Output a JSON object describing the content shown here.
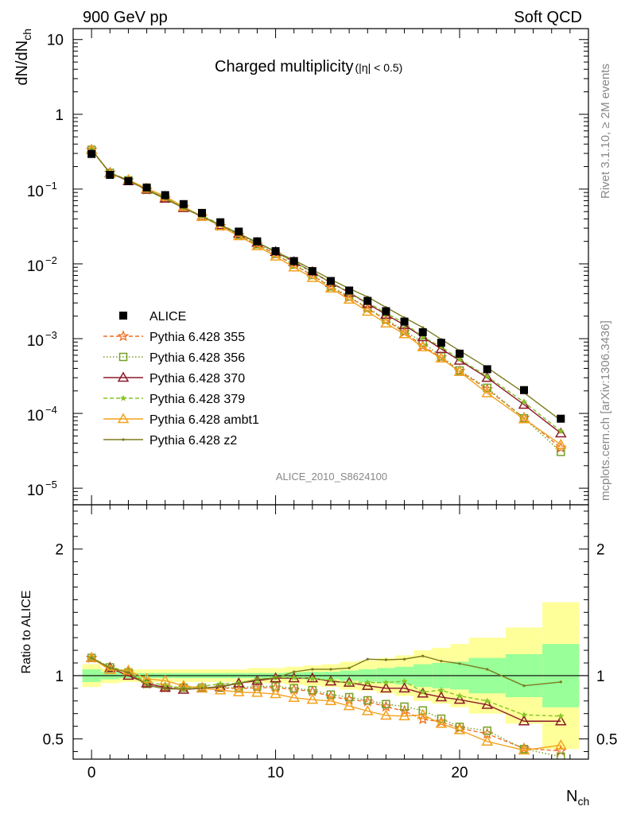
{
  "header": {
    "left": "900 GeV pp",
    "right": "Soft QCD"
  },
  "side_labels": {
    "rivet": "Rivet 3.1.10, ≥ 2M events",
    "mcplots": "mcplots.cern.ch [arXiv:1306.3436]"
  },
  "analysis_id": "ALICE_2010_S8624100",
  "colors": {
    "ALICE": "#000000",
    "p355": "#ee6f22",
    "p356": "#77a026",
    "p370": "#8b1a2a",
    "p379": "#84c42a",
    "pambt1": "#f2a21c",
    "pz2": "#7b7a1e",
    "band_outer": "#ffff99",
    "band_inner": "#99ff99"
  },
  "chart_data": [
    {
      "type": "line",
      "panel": "main",
      "title": "Charged multiplicity",
      "title_suffix": "(|η| < 0.5)",
      "ylabel": "dN/dN",
      "ylabel_sub": "ch",
      "yscale": "log",
      "ylim": [
        6e-06,
        14
      ],
      "xlim": [
        -1,
        27
      ],
      "yticks": [
        {
          "value": 10,
          "label": "10",
          "exp": ""
        },
        {
          "value": 1,
          "label": "1",
          "exp": ""
        },
        {
          "value": 0.1,
          "label": "10",
          "exp": "−1"
        },
        {
          "value": 0.01,
          "label": "10",
          "exp": "−2"
        },
        {
          "value": 0.001,
          "label": "10",
          "exp": "−3"
        },
        {
          "value": 0.0001,
          "label": "10",
          "exp": "−4"
        },
        {
          "value": 1e-05,
          "label": "10",
          "exp": "−5"
        }
      ],
      "x": [
        0,
        1,
        2,
        3,
        4,
        5,
        6,
        7,
        8,
        9,
        10,
        11,
        12,
        13,
        14,
        15,
        16,
        17,
        18,
        19,
        20,
        21.5,
        23.5,
        25.5
      ],
      "legend_placement": "center-left",
      "series": [
        {
          "name": "ALICE",
          "key": "ALICE",
          "marker": "square",
          "line": "none",
          "values": [
            0.295,
            0.155,
            0.128,
            0.105,
            0.083,
            0.063,
            0.048,
            0.036,
            0.027,
            0.02,
            0.0148,
            0.0109,
            0.008,
            0.0059,
            0.0044,
            0.0032,
            0.00233,
            0.00169,
            0.00122,
            0.00088,
            0.00063,
            0.00039,
            0.000205,
            8.5e-05
          ]
        },
        {
          "name": "Pythia 6.428 355",
          "key": "p355",
          "marker": "star",
          "line": "dashed",
          "values": [
            0.336,
            0.165,
            0.131,
            0.098,
            0.075,
            0.057,
            0.043,
            0.032,
            0.0242,
            0.0181,
            0.0134,
            0.0097,
            0.007,
            0.0049,
            0.00357,
            0.00254,
            0.00176,
            0.00122,
            0.0008,
            0.00056,
            0.00037,
            0.00021,
            8.75e-05,
            3.47e-05
          ]
        },
        {
          "name": "Pythia 6.428 356",
          "key": "p356",
          "marker": "open-square",
          "line": "dotted",
          "values": [
            0.336,
            0.165,
            0.131,
            0.098,
            0.075,
            0.057,
            0.043,
            0.032,
            0.0245,
            0.0183,
            0.0136,
            0.0098,
            0.0071,
            0.005,
            0.00365,
            0.00258,
            0.00181,
            0.00128,
            0.00089,
            0.00058,
            0.000375,
            0.00022,
            8.61e-05,
            3.06e-05
          ]
        },
        {
          "name": "Pythia 6.428 370",
          "key": "p370",
          "marker": "open-triangle",
          "line": "solid",
          "values": [
            0.336,
            0.164,
            0.128,
            0.099,
            0.075,
            0.056,
            0.043,
            0.033,
            0.0254,
            0.0192,
            0.0145,
            0.0106,
            0.0078,
            0.0056,
            0.00414,
            0.00294,
            0.0021,
            0.00152,
            0.00105,
            0.00073,
            0.00051,
            0.0003,
            0.000131,
            5.44e-05
          ]
        },
        {
          "name": "Pythia 6.428 379",
          "key": "p379",
          "marker": "small-star",
          "line": "dashed",
          "values": [
            0.336,
            0.166,
            0.132,
            0.1,
            0.077,
            0.057,
            0.044,
            0.034,
            0.0254,
            0.0194,
            0.0146,
            0.0107,
            0.0078,
            0.0057,
            0.00414,
            0.00303,
            0.00221,
            0.00161,
            0.00106,
            0.00078,
            0.00053,
            0.000313,
            0.000142,
            5.78e-05
          ]
        },
        {
          "name": "Pythia 6.428 ambt1",
          "key": "pambt1",
          "marker": "open-triangle",
          "line": "solid",
          "values": [
            0.336,
            0.162,
            0.133,
            0.102,
            0.08,
            0.058,
            0.043,
            0.032,
            0.0235,
            0.0173,
            0.0126,
            0.009,
            0.0065,
            0.0047,
            0.00334,
            0.0023,
            0.0016,
            0.00115,
            0.00077,
            0.000545,
            0.00036,
            0.000187,
            8.4e-05,
            3.83e-05
          ]
        },
        {
          "name": "Pythia 6.428 z2",
          "key": "pz2",
          "marker": "dot",
          "line": "solid",
          "values": [
            0.336,
            0.164,
            0.131,
            0.097,
            0.074,
            0.056,
            0.043,
            0.033,
            0.0254,
            0.0194,
            0.0145,
            0.0112,
            0.0084,
            0.0062,
            0.00467,
            0.00362,
            0.00262,
            0.00191,
            0.00141,
            0.00098,
            0.00069,
            0.00041,
            0.000189,
            8.07e-05
          ]
        }
      ]
    },
    {
      "type": "line",
      "panel": "ratio",
      "ylabel": "Ratio to ALICE",
      "ylim": [
        0.34,
        2.35
      ],
      "xlim": [
        -1,
        27
      ],
      "xlabel": "N",
      "xlabel_sub": "ch",
      "xticks": [
        0,
        10,
        20
      ],
      "yticks": [
        0.5,
        1,
        2
      ],
      "reference_line": 1,
      "bands": {
        "edges": [
          -0.5,
          0.5,
          1.5,
          2.5,
          3.5,
          4.5,
          5.5,
          6.5,
          7.5,
          8.5,
          9.5,
          10.5,
          11.5,
          12.5,
          13.5,
          14.5,
          15.5,
          16.5,
          17.5,
          18.5,
          19.5,
          20.5,
          22.5,
          24.5,
          26.5
        ],
        "inner_halfwidth": [
          0.05,
          0.03,
          0.02,
          0.02,
          0.02,
          0.02,
          0.02,
          0.02,
          0.02,
          0.02,
          0.02,
          0.025,
          0.03,
          0.03,
          0.04,
          0.05,
          0.06,
          0.07,
          0.09,
          0.1,
          0.11,
          0.14,
          0.17,
          0.25
        ],
        "outer_halfwidth": [
          0.09,
          0.06,
          0.05,
          0.05,
          0.05,
          0.05,
          0.05,
          0.05,
          0.05,
          0.06,
          0.06,
          0.07,
          0.08,
          0.09,
          0.11,
          0.12,
          0.14,
          0.16,
          0.2,
          0.22,
          0.25,
          0.3,
          0.38,
          0.58
        ]
      },
      "series": [
        {
          "key": "p355",
          "marker": "star",
          "line": "dashed",
          "values": [
            1.14,
            1.065,
            1.025,
            0.935,
            0.905,
            0.905,
            0.905,
            0.905,
            0.895,
            0.905,
            0.905,
            0.89,
            0.875,
            0.835,
            0.81,
            0.795,
            0.755,
            0.72,
            0.655,
            0.635,
            0.585,
            0.54,
            0.425,
            0.405
          ]
        },
        {
          "key": "p356",
          "marker": "open-square",
          "line": "dotted",
          "values": [
            1.14,
            1.065,
            1.025,
            0.935,
            0.905,
            0.905,
            0.905,
            0.905,
            0.905,
            0.915,
            0.915,
            0.9,
            0.885,
            0.85,
            0.83,
            0.805,
            0.775,
            0.755,
            0.725,
            0.66,
            0.595,
            0.565,
            0.42,
            0.36
          ]
        },
        {
          "key": "p370",
          "marker": "open-triangle",
          "line": "solid",
          "values": [
            1.14,
            1.06,
            1.0,
            0.94,
            0.905,
            0.89,
            0.9,
            0.91,
            0.94,
            0.96,
            0.98,
            0.98,
            0.98,
            0.955,
            0.945,
            0.92,
            0.9,
            0.9,
            0.86,
            0.83,
            0.81,
            0.77,
            0.64,
            0.64
          ]
        },
        {
          "key": "p379",
          "marker": "small-star",
          "line": "dashed",
          "values": [
            1.14,
            1.07,
            1.03,
            0.95,
            0.925,
            0.9,
            0.915,
            0.935,
            0.94,
            0.97,
            0.985,
            0.985,
            0.975,
            0.965,
            0.94,
            0.945,
            0.945,
            0.955,
            0.87,
            0.885,
            0.84,
            0.8,
            0.69,
            0.68
          ]
        },
        {
          "key": "pambt1",
          "marker": "open-triangle",
          "line": "solid",
          "values": [
            1.14,
            1.045,
            1.04,
            0.975,
            0.96,
            0.92,
            0.9,
            0.885,
            0.87,
            0.865,
            0.855,
            0.825,
            0.81,
            0.8,
            0.76,
            0.72,
            0.685,
            0.68,
            0.69,
            0.62,
            0.57,
            0.48,
            0.41,
            0.45
          ]
        },
        {
          "key": "pz2",
          "marker": "dot",
          "line": "solid",
          "values": [
            1.14,
            1.06,
            1.025,
            0.925,
            0.895,
            0.895,
            0.9,
            0.915,
            0.94,
            0.97,
            0.98,
            1.03,
            1.05,
            1.05,
            1.06,
            1.13,
            1.125,
            1.13,
            1.155,
            1.115,
            1.095,
            1.05,
            0.92,
            0.95
          ]
        }
      ]
    }
  ]
}
